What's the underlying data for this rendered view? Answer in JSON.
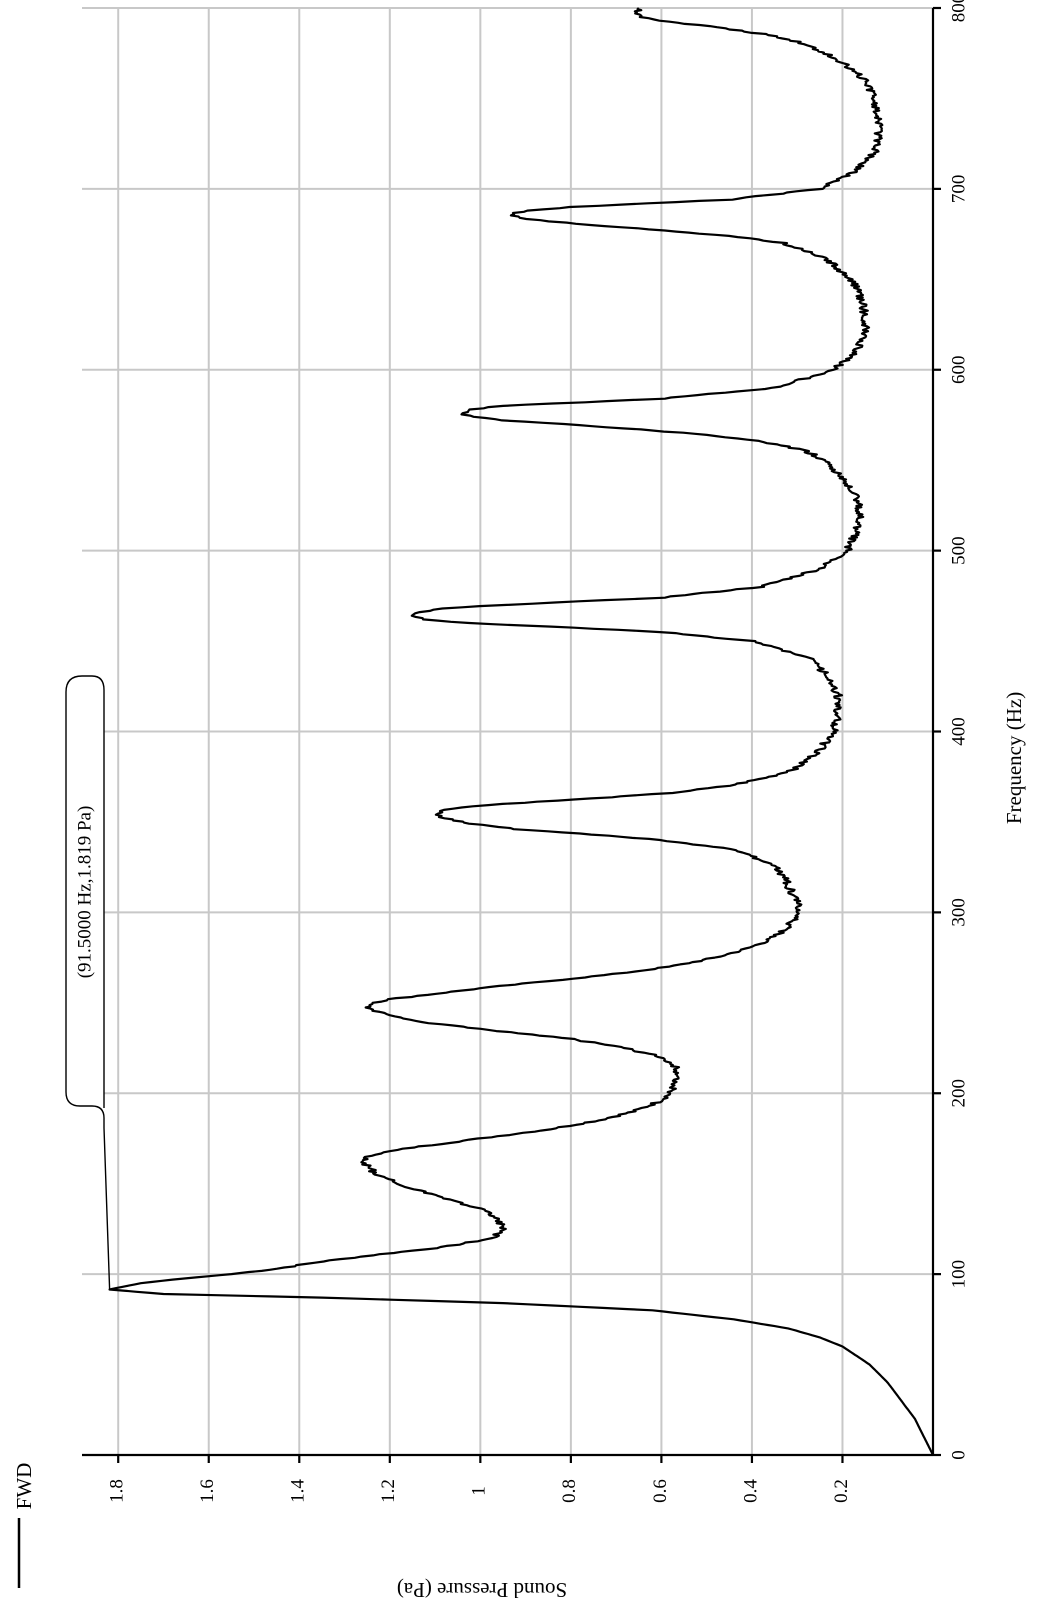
{
  "chart_data": {
    "type": "line",
    "orientation": "rotated-90",
    "xlabel": "Frequency (Hz)",
    "ylabel": "Sound Pressure (Pa)",
    "xlim": [
      0,
      800
    ],
    "ylim": [
      0,
      1.88
    ],
    "x_ticks": [
      0,
      100,
      200,
      300,
      400,
      500,
      600,
      700,
      800
    ],
    "y_ticks": [
      0.2,
      0.4,
      0.6,
      0.8,
      1,
      1.2,
      1.4,
      1.6,
      1.8
    ],
    "grid": true,
    "legend": {
      "position": "top-left",
      "entries": [
        "FWD"
      ]
    },
    "annotations": [
      {
        "text": "(91.5000 Hz,1.819 Pa)",
        "x": 91.5,
        "y": 1.819
      }
    ],
    "series": [
      {
        "name": "FWD",
        "x": [
          0,
          5,
          10,
          20,
          30,
          40,
          50,
          60,
          65,
          70,
          75,
          80,
          84,
          87,
          89,
          91.5,
          93,
          95,
          97,
          100,
          103,
          107,
          111,
          115,
          120,
          125,
          130,
          135,
          140,
          145,
          150,
          155,
          160,
          163,
          166,
          170,
          175,
          180,
          185,
          190,
          195,
          200,
          205,
          210,
          215,
          220,
          225,
          230,
          235,
          240,
          245,
          248,
          250,
          252,
          255,
          258,
          262,
          266,
          270,
          275,
          280,
          285,
          290,
          295,
          300,
          305,
          310,
          315,
          320,
          325,
          330,
          335,
          340,
          343,
          346,
          349,
          352,
          354,
          356,
          358,
          360,
          363,
          366,
          370,
          375,
          380,
          390,
          400,
          410,
          420,
          430,
          440,
          450,
          455,
          458,
          460,
          462,
          464,
          466,
          468,
          470,
          474,
          480,
          490,
          500,
          510,
          520,
          530,
          540,
          550,
          555,
          560,
          564,
          567,
          570,
          572,
          574,
          576,
          578,
          580,
          584,
          590,
          600,
          610,
          620,
          630,
          640,
          650,
          660,
          665,
          670,
          674,
          677,
          680,
          682,
          684,
          686,
          688,
          690,
          694,
          700,
          710,
          720,
          730,
          740,
          750,
          760,
          770,
          780,
          785,
          790,
          793,
          795,
          797,
          800
        ],
        "y": [
          0.0,
          0.01,
          0.02,
          0.04,
          0.07,
          0.1,
          0.14,
          0.2,
          0.25,
          0.32,
          0.44,
          0.62,
          0.95,
          1.35,
          1.7,
          1.819,
          1.79,
          1.75,
          1.68,
          1.55,
          1.45,
          1.35,
          1.22,
          1.08,
          0.97,
          0.95,
          0.96,
          0.99,
          1.05,
          1.12,
          1.18,
          1.23,
          1.25,
          1.26,
          1.24,
          1.15,
          1.0,
          0.85,
          0.74,
          0.66,
          0.61,
          0.58,
          0.57,
          0.56,
          0.57,
          0.6,
          0.68,
          0.8,
          0.98,
          1.15,
          1.23,
          1.25,
          1.24,
          1.2,
          1.1,
          1.0,
          0.85,
          0.7,
          0.58,
          0.48,
          0.41,
          0.36,
          0.33,
          0.31,
          0.3,
          0.3,
          0.31,
          0.32,
          0.33,
          0.35,
          0.39,
          0.45,
          0.6,
          0.75,
          0.92,
          1.02,
          1.08,
          1.1,
          1.09,
          1.05,
          0.95,
          0.75,
          0.58,
          0.45,
          0.36,
          0.3,
          0.25,
          0.22,
          0.21,
          0.21,
          0.23,
          0.27,
          0.4,
          0.6,
          0.85,
          1.03,
          1.12,
          1.15,
          1.13,
          1.08,
          0.95,
          0.6,
          0.38,
          0.25,
          0.19,
          0.17,
          0.16,
          0.17,
          0.2,
          0.24,
          0.28,
          0.37,
          0.5,
          0.65,
          0.82,
          0.95,
          1.02,
          1.04,
          1.02,
          0.95,
          0.6,
          0.35,
          0.22,
          0.17,
          0.15,
          0.15,
          0.16,
          0.18,
          0.23,
          0.27,
          0.33,
          0.45,
          0.6,
          0.75,
          0.85,
          0.92,
          0.93,
          0.9,
          0.8,
          0.45,
          0.25,
          0.17,
          0.13,
          0.12,
          0.12,
          0.13,
          0.15,
          0.2,
          0.28,
          0.36,
          0.5,
          0.6,
          0.64,
          0.65,
          0.65
        ]
      }
    ]
  }
}
